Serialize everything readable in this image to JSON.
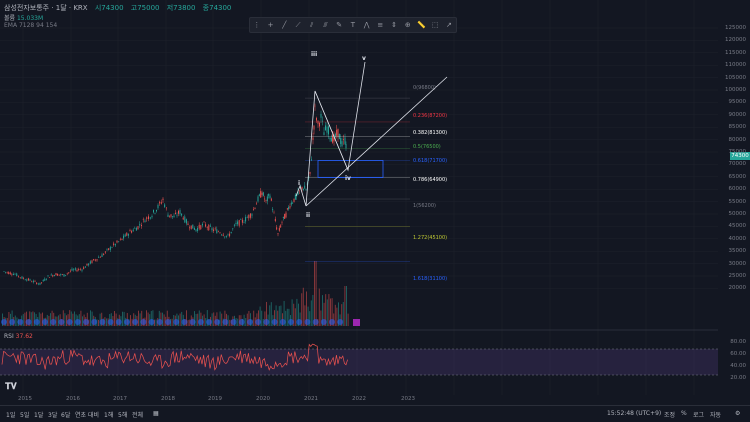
{
  "header": {
    "symbol": "삼성전자보통주 · 1달 · KRX",
    "open": "시74300",
    "high": "고75000",
    "low": "저73800",
    "close": "종74300"
  },
  "volume_label": "볼륨",
  "volume_value": "15.033M",
  "ema_label": "EMA 7128 94 154",
  "rsi": {
    "label": "RSI",
    "value": "37.62",
    "levels": [
      "80.00",
      "60.00",
      "40.00",
      "20.00"
    ]
  },
  "price_axis": [
    "125000",
    "120000",
    "115000",
    "110000",
    "105000",
    "100000",
    "95000",
    "90000",
    "85000",
    "80000",
    "75000",
    "70000",
    "65000",
    "60000",
    "55000",
    "50000",
    "45000",
    "40000",
    "35000",
    "30000",
    "25000",
    "20000"
  ],
  "current_price": "74300",
  "time_axis": [
    "2015",
    "2016",
    "2017",
    "2018",
    "2019",
    "2020",
    "2021",
    "2022",
    "2023"
  ],
  "fib": [
    {
      "label": "0(96800)",
      "color": "#787b86"
    },
    {
      "label": "0.236(87200)",
      "color": "#f23645"
    },
    {
      "label": "0.382(81300)",
      "color": "#ffffff"
    },
    {
      "label": "0.5(76500)",
      "color": "#4caf50"
    },
    {
      "label": "0.618(71700)",
      "color": "#2962ff"
    },
    {
      "label": "0.786(64900)",
      "color": "#ffffff"
    },
    {
      "label": "1(56200)",
      "color": "#787b86"
    },
    {
      "label": "1.272(45100)",
      "color": "#c0ca33"
    },
    {
      "label": "1.618(31100)",
      "color": "#2962ff"
    }
  ],
  "waves": [
    "i",
    "ii",
    "iii",
    "iv",
    "v"
  ],
  "bottom": {
    "ranges": [
      "1일",
      "5일",
      "1달",
      "3달",
      "6달",
      "연초 대비",
      "1해",
      "5해",
      "전체"
    ],
    "time": "15:52:48 (UTC+9)",
    "right": [
      "조정",
      "%",
      "로그",
      "자동"
    ]
  },
  "colors": {
    "up": "#26a69a",
    "down": "#ef5350",
    "bg": "#131722",
    "rsi": "#ef5350"
  }
}
